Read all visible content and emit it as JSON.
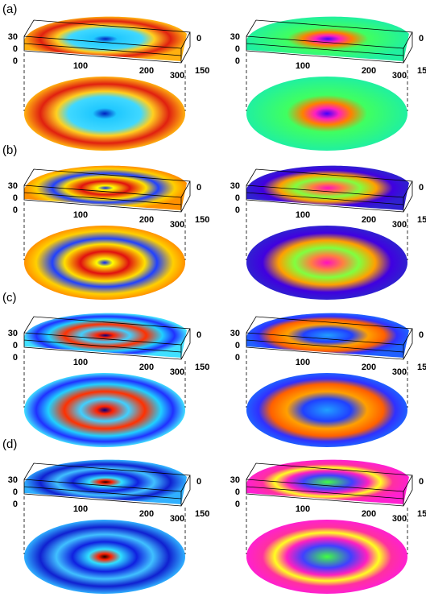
{
  "rows": [
    {
      "label": "(a)"
    },
    {
      "label": "(b)"
    },
    {
      "label": "(c)"
    },
    {
      "label": "(d)"
    }
  ],
  "axis": {
    "z_top": "30",
    "z_bottom": "0",
    "origin": "0",
    "x": [
      "100",
      "200",
      "300"
    ],
    "y_start": "0",
    "y_end": "150"
  }
}
